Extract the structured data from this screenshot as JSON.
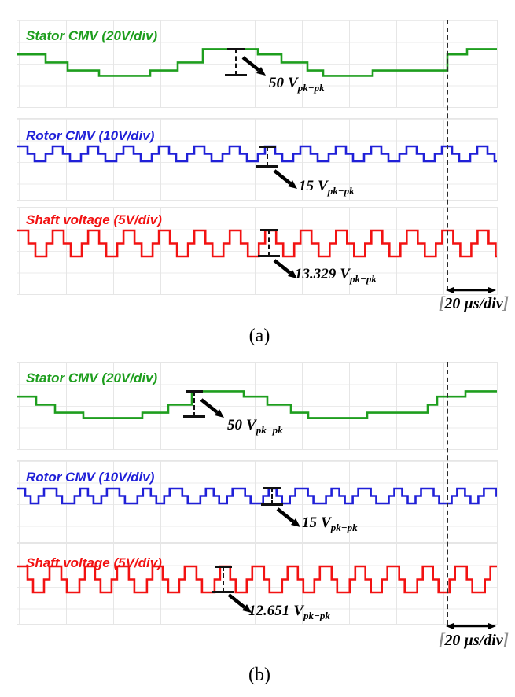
{
  "figure": {
    "caption_a": "(a)",
    "caption_b": "(b)",
    "time_scale": {
      "open": "[",
      "label": "20 µs/div",
      "close": "]"
    }
  },
  "chart_data": [
    {
      "panel": "a",
      "type": "line",
      "x_unit": "µs",
      "time_per_div_us": 20,
      "x_span_us": 203.3,
      "grid": true,
      "cursor_dashed_line": true,
      "traces": [
        {
          "id": "a-stator",
          "label": "Stator CMV (20V/div)",
          "color": "#1e9e1e",
          "volts_per_div": 20,
          "pk_pk_V": 50,
          "pk_pk_label": {
            "value": "50",
            "unit": "V",
            "sub": "pk−pk"
          },
          "levels_V": {
            "P": 25,
            "A": 15,
            "B": 0,
            "C": -15,
            "D": -25
          },
          "sequence_us": [
            [
              "A",
              12
            ],
            [
              "B",
              9.33
            ],
            [
              "C",
              13.33
            ],
            [
              "D",
              21.67
            ],
            [
              "C",
              11.67
            ],
            [
              "B",
              10.67
            ],
            [
              "P",
              23.33
            ],
            [
              "A",
              10
            ],
            [
              "B",
              11
            ],
            [
              "C",
              6.67
            ],
            [
              "D",
              21
            ],
            [
              "C",
              31.67
            ],
            [
              "A",
              8.33
            ],
            [
              "P",
              12.67
            ]
          ]
        },
        {
          "id": "a-rotor",
          "label": "Rotor CMV (10V/div)",
          "color": "#2020d8",
          "volts_per_div": 10,
          "pk_pk_V": 15,
          "pk_pk_label": {
            "value": "15",
            "unit": "V",
            "sub": "pk−pk"
          },
          "levels_V": {
            "H": 7.5,
            "M": 0,
            "L": -7.5
          },
          "pattern_us": [
            [
              "H",
              4.33
            ],
            [
              "M",
              3
            ],
            [
              "L",
              4.67
            ],
            [
              "M",
              3
            ]
          ],
          "repeat": 14
        },
        {
          "id": "a-shaft",
          "label": "Shaft voltage (5V/div)",
          "color": "#f21212",
          "volts_per_div": 5,
          "pk_pk_V": 13.329,
          "pk_pk_label": {
            "value": "13.329",
            "unit": "V",
            "sub": "pk−pk"
          },
          "levels_V": {
            "H": 6.66,
            "M": 0,
            "L": -6.66
          },
          "pattern_us": [
            [
              "H",
              4.67
            ],
            [
              "M",
              3
            ],
            [
              "L",
              4.67
            ],
            [
              "M",
              2.67
            ]
          ],
          "repeat": 14
        }
      ]
    },
    {
      "panel": "b",
      "type": "line",
      "x_unit": "µs",
      "time_per_div_us": 20,
      "x_span_us": 203.3,
      "grid": true,
      "cursor_dashed_line": true,
      "traces": [
        {
          "id": "b-stator",
          "label": "Stator CMV (20V/div)",
          "color": "#1e9e1e",
          "volts_per_div": 20,
          "pk_pk_V": 50,
          "pk_pk_label": {
            "value": "50",
            "unit": "V",
            "sub": "pk−pk"
          },
          "levels_V": {
            "P": 25,
            "A": 15,
            "B": 0,
            "C": -15,
            "D": -25
          },
          "sequence_us": [
            [
              "A",
              8
            ],
            [
              "B",
              8
            ],
            [
              "C",
              12
            ],
            [
              "D",
              25
            ],
            [
              "C",
              11
            ],
            [
              "B",
              10
            ],
            [
              "P",
              22
            ],
            [
              "A",
              10
            ],
            [
              "B",
              10
            ],
            [
              "C",
              7.33
            ],
            [
              "D",
              25
            ],
            [
              "C",
              25.67
            ],
            [
              "B",
              4
            ],
            [
              "A",
              12
            ],
            [
              "P",
              13.33
            ]
          ]
        },
        {
          "id": "b-rotor",
          "label": "Rotor CMV (10V/div)",
          "color": "#2020d8",
          "volts_per_div": 10,
          "pk_pk_V": 15,
          "pk_pk_label": {
            "value": "15",
            "unit": "V",
            "sub": "pk−pk"
          },
          "levels_V": {
            "H": 7.5,
            "M": 0,
            "L": -7.5
          },
          "pattern_us": [
            [
              "H",
              3.33
            ],
            [
              "M",
              2.33
            ],
            [
              "L",
              3.33
            ],
            [
              "M",
              2.33
            ],
            [
              "H",
              5.33
            ],
            [
              "M",
              2.33
            ],
            [
              "L",
              5.33
            ],
            [
              "M",
              2.33
            ]
          ],
          "repeat": 8
        },
        {
          "id": "b-shaft",
          "label": "Shaft voltage (5V/div)",
          "color": "#f21212",
          "volts_per_div": 5,
          "pk_pk_V": 12.651,
          "pk_pk_label": {
            "value": "12.651",
            "unit": "V",
            "sub": "pk−pk"
          },
          "levels_V": {
            "H": 6.33,
            "M": 0,
            "L": -6.33
          },
          "pattern_us": [
            [
              "H",
              4.33
            ],
            [
              "M",
              2.33
            ],
            [
              "L",
              4.67
            ],
            [
              "M",
              2.33
            ],
            [
              "H",
              5
            ],
            [
              "M",
              2.33
            ],
            [
              "L",
              5.33
            ],
            [
              "M",
              2.33
            ]
          ],
          "repeat": 8
        }
      ]
    }
  ]
}
